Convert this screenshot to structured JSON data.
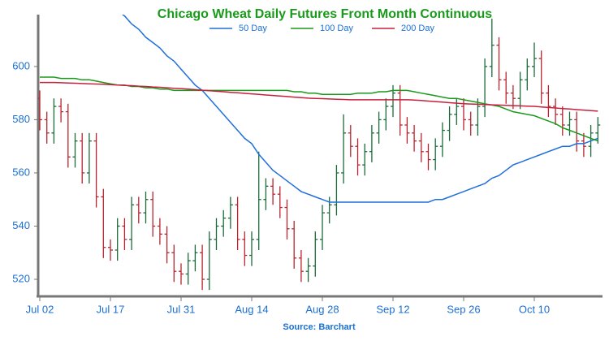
{
  "chart_data": {
    "type": "ohlc",
    "title": "Chicago Wheat Daily Futures Front Month Continuous",
    "source": "Source: Barchart",
    "categories": [
      "Jul 02",
      null,
      null,
      null,
      null,
      null,
      null,
      null,
      null,
      null,
      "Jul 17",
      null,
      null,
      null,
      null,
      null,
      null,
      null,
      null,
      null,
      "Jul 31",
      null,
      null,
      null,
      null,
      null,
      null,
      null,
      null,
      null,
      "Aug 14",
      null,
      null,
      null,
      null,
      null,
      null,
      null,
      null,
      null,
      "Aug 28",
      null,
      null,
      null,
      null,
      null,
      null,
      null,
      null,
      null,
      "Sep 12",
      null,
      null,
      null,
      null,
      null,
      null,
      null,
      null,
      null,
      "Sep 26",
      null,
      null,
      null,
      null,
      null,
      null,
      null,
      null,
      null,
      "Oct 10",
      null,
      null,
      null,
      null,
      null,
      null,
      null,
      null,
      null
    ],
    "open": [
      588,
      580,
      575,
      585,
      583,
      566,
      572,
      560,
      572,
      551,
      532,
      531,
      540,
      535,
      548,
      545,
      550,
      540,
      537,
      530,
      523,
      522,
      527,
      530,
      520,
      535,
      540,
      543,
      548,
      535,
      529,
      535,
      550,
      555,
      552,
      547,
      539,
      528,
      523,
      525,
      535,
      545,
      548,
      560,
      575,
      570,
      563,
      568,
      575,
      580,
      585,
      590,
      578,
      575,
      572,
      568,
      565,
      570,
      576,
      582,
      585,
      580,
      578,
      585,
      600,
      608,
      595,
      590,
      588,
      595,
      600,
      603,
      590,
      585,
      582,
      578,
      580,
      572,
      570,
      575
    ],
    "high": [
      591,
      583,
      588,
      588,
      586,
      575,
      575,
      575,
      575,
      554,
      535,
      543,
      543,
      551,
      551,
      553,
      553,
      543,
      540,
      533,
      526,
      530,
      533,
      533,
      538,
      543,
      546,
      551,
      551,
      538,
      538,
      568,
      558,
      558,
      555,
      550,
      542,
      531,
      528,
      538,
      548,
      551,
      563,
      582,
      578,
      573,
      571,
      578,
      583,
      588,
      593,
      593,
      581,
      578,
      575,
      571,
      573,
      579,
      585,
      588,
      588,
      583,
      588,
      603,
      618,
      611,
      598,
      593,
      598,
      603,
      609,
      606,
      593,
      588,
      585,
      583,
      583,
      575,
      578,
      581
    ],
    "low": [
      576,
      571,
      571,
      579,
      562,
      562,
      556,
      556,
      547,
      528,
      527,
      527,
      531,
      531,
      541,
      541,
      536,
      533,
      526,
      519,
      518,
      518,
      523,
      516,
      516,
      531,
      536,
      539,
      531,
      525,
      525,
      531,
      546,
      548,
      543,
      535,
      524,
      519,
      519,
      521,
      531,
      541,
      544,
      556,
      566,
      559,
      559,
      564,
      571,
      576,
      581,
      574,
      571,
      568,
      564,
      561,
      561,
      566,
      572,
      578,
      576,
      574,
      574,
      581,
      596,
      591,
      586,
      584,
      584,
      591,
      596,
      586,
      581,
      578,
      574,
      574,
      568,
      566,
      566,
      571
    ],
    "close": [
      580,
      575,
      585,
      583,
      566,
      572,
      560,
      572,
      551,
      532,
      531,
      540,
      535,
      548,
      545,
      550,
      540,
      537,
      530,
      523,
      522,
      527,
      530,
      520,
      535,
      540,
      543,
      548,
      535,
      529,
      535,
      550,
      555,
      552,
      547,
      539,
      528,
      523,
      525,
      535,
      545,
      548,
      560,
      575,
      570,
      563,
      568,
      575,
      580,
      585,
      590,
      578,
      575,
      572,
      568,
      565,
      570,
      576,
      582,
      585,
      580,
      578,
      585,
      600,
      608,
      595,
      590,
      588,
      595,
      600,
      603,
      590,
      585,
      582,
      578,
      580,
      572,
      570,
      575,
      578
    ],
    "up_color": "#1b6b3a",
    "down_color": "#b8242e",
    "series": [
      {
        "name": "50 Day",
        "color": "#1f6fdc",
        "values": [
          null,
          null,
          null,
          null,
          null,
          null,
          null,
          null,
          null,
          null,
          null,
          621,
          619,
          616,
          614,
          611,
          609,
          607,
          604,
          602,
          599,
          596,
          593,
          591,
          588,
          585,
          582,
          579,
          576,
          573,
          571,
          567,
          564,
          561,
          559,
          557,
          555,
          553,
          552,
          551,
          550,
          549,
          549,
          549,
          549,
          549,
          549,
          549,
          549,
          549,
          549,
          549,
          549,
          549,
          549,
          549,
          550,
          550,
          551,
          552,
          553,
          554,
          555,
          556,
          558,
          559,
          561,
          563,
          564,
          565,
          566,
          567,
          568,
          569,
          570,
          570,
          571,
          571,
          572,
          573
        ]
      },
      {
        "name": "100 Day",
        "color": "#1a9a1a",
        "values": [
          596,
          596,
          596,
          595.5,
          595.5,
          595.5,
          595,
          595,
          594.5,
          594,
          593.5,
          593,
          593,
          592.5,
          592.5,
          592,
          592,
          591.5,
          591.5,
          591,
          591,
          591,
          591,
          591,
          591,
          591,
          591,
          591,
          591,
          591,
          591,
          591,
          591,
          591,
          591,
          591,
          590.5,
          590.5,
          590,
          590,
          589.5,
          589.5,
          589.5,
          589.5,
          589.5,
          590,
          590,
          590,
          590.5,
          590.5,
          591,
          591,
          591,
          590.5,
          590,
          589.5,
          589,
          588.5,
          588,
          588,
          587.5,
          587,
          586.5,
          586,
          585.5,
          585,
          584,
          583,
          582.5,
          582,
          581.5,
          580.5,
          579.5,
          578.5,
          577,
          576,
          575,
          574,
          573,
          572
        ]
      },
      {
        "name": "200 Day",
        "color": "#c8203c",
        "values": [
          594,
          594,
          594,
          593.9,
          593.8,
          593.7,
          593.6,
          593.5,
          593.4,
          593.3,
          593.2,
          593,
          592.9,
          592.8,
          592.6,
          592.5,
          592.3,
          592.2,
          592,
          591.8,
          591.7,
          591.5,
          591.3,
          591.1,
          590.9,
          590.7,
          590.5,
          590.3,
          590.1,
          589.9,
          589.7,
          589.5,
          589.3,
          589.1,
          588.9,
          588.7,
          588.5,
          588.3,
          588.1,
          588,
          587.9,
          587.8,
          587.7,
          587.6,
          587.5,
          587.5,
          587.5,
          587.5,
          587.5,
          587.5,
          587.5,
          587.5,
          587.5,
          587.4,
          587.2,
          587,
          586.8,
          586.6,
          586.4,
          586.2,
          586,
          585.9,
          585.8,
          585.7,
          585.6,
          585.5,
          585.4,
          585.3,
          585.2,
          585.1,
          585,
          584.8,
          584.6,
          584.4,
          584.2,
          584,
          583.8,
          583.6,
          583.4,
          583.2
        ]
      }
    ],
    "ylim": [
      513.6,
      619.5
    ],
    "yticks": [
      520,
      540,
      560,
      580,
      600
    ],
    "grid": false
  }
}
